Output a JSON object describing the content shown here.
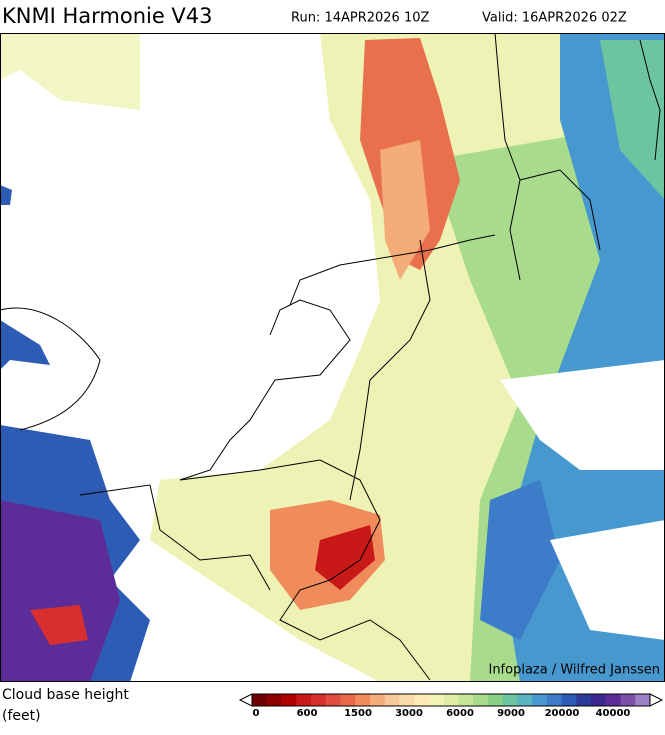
{
  "header": {
    "title": "KNMI Harmonie V43",
    "run": "Run: 14APR2026 10Z",
    "valid": "Valid: 16APR2026 02Z"
  },
  "map": {
    "credit": "Infoplaza / Wilfred Janssen"
  },
  "legend": {
    "label_line1": "Cloud base height",
    "label_line2": "(feet)",
    "colors": [
      "#6e0000",
      "#900000",
      "#b00000",
      "#c81818",
      "#d83030",
      "#e04c40",
      "#e86848",
      "#f08c5c",
      "#f4ac78",
      "#f8c898",
      "#fadcaa",
      "#fcecb8",
      "#f4f4b4",
      "#e0eea8",
      "#c8e698",
      "#a8dc8c",
      "#88d084",
      "#6cc4a0",
      "#58b4c0",
      "#4898d0",
      "#3c7cc8",
      "#2c5cb4",
      "#2c3c98",
      "#3c2890",
      "#5c2c98",
      "#7c50a8",
      "#9a80c4"
    ],
    "ticks": [
      0,
      600,
      1500,
      3000,
      6000,
      9000,
      20000,
      40000
    ]
  }
}
